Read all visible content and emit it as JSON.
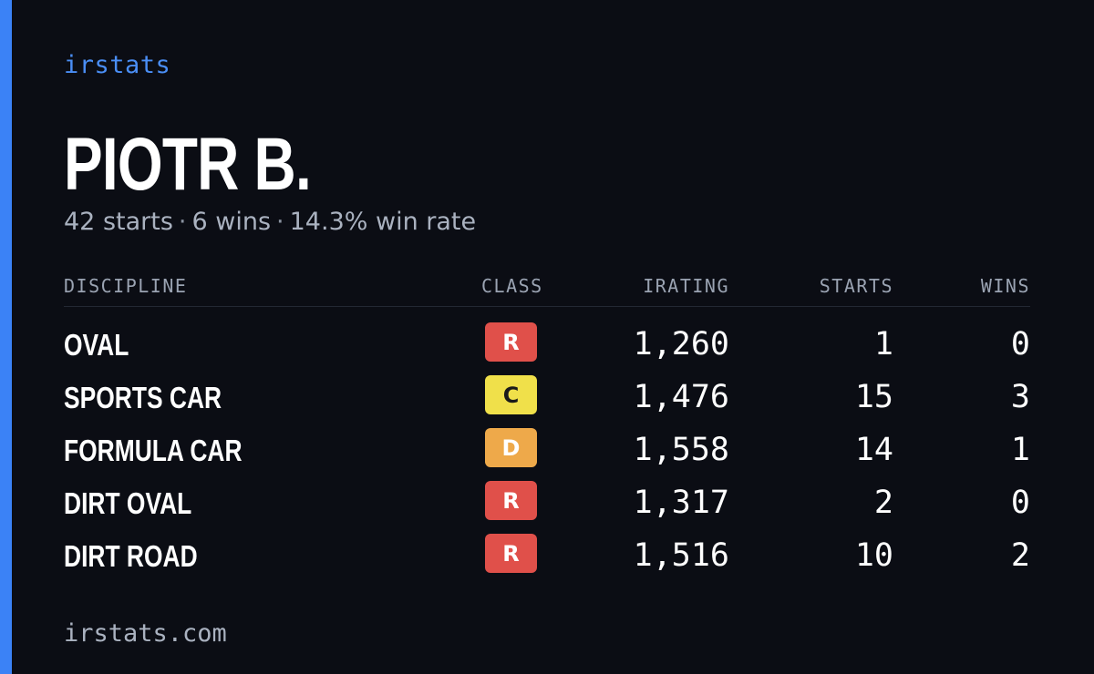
{
  "brand": "irstats",
  "driver": {
    "name": "PIOTR B.",
    "starts_text": "42 starts",
    "wins_text": "6 wins",
    "win_rate_text": "14.3% win rate",
    "separator": "·"
  },
  "table": {
    "headers": {
      "discipline": "DISCIPLINE",
      "class": "CLASS",
      "irating": "IRATING",
      "starts": "STARTS",
      "wins": "WINS"
    },
    "rows": [
      {
        "discipline": "OVAL",
        "class": "R",
        "irating": "1,260",
        "starts": "1",
        "wins": "0"
      },
      {
        "discipline": "SPORTS CAR",
        "class": "C",
        "irating": "1,476",
        "starts": "15",
        "wins": "3"
      },
      {
        "discipline": "FORMULA CAR",
        "class": "D",
        "irating": "1,558",
        "starts": "14",
        "wins": "1"
      },
      {
        "discipline": "DIRT OVAL",
        "class": "R",
        "irating": "1,317",
        "starts": "2",
        "wins": "0"
      },
      {
        "discipline": "DIRT ROAD",
        "class": "R",
        "irating": "1,516",
        "starts": "10",
        "wins": "2"
      }
    ]
  },
  "class_colors": {
    "R": {
      "bg": "#e0504a",
      "fg": "#ffffff"
    },
    "C": {
      "bg": "#f0e04a",
      "fg": "#1a1a1a"
    },
    "D": {
      "bg": "#eea94a",
      "fg": "#ffffff"
    }
  },
  "colors": {
    "accent": "#3b82f6",
    "background": "#0b0d14"
  },
  "footer": "irstats.com"
}
